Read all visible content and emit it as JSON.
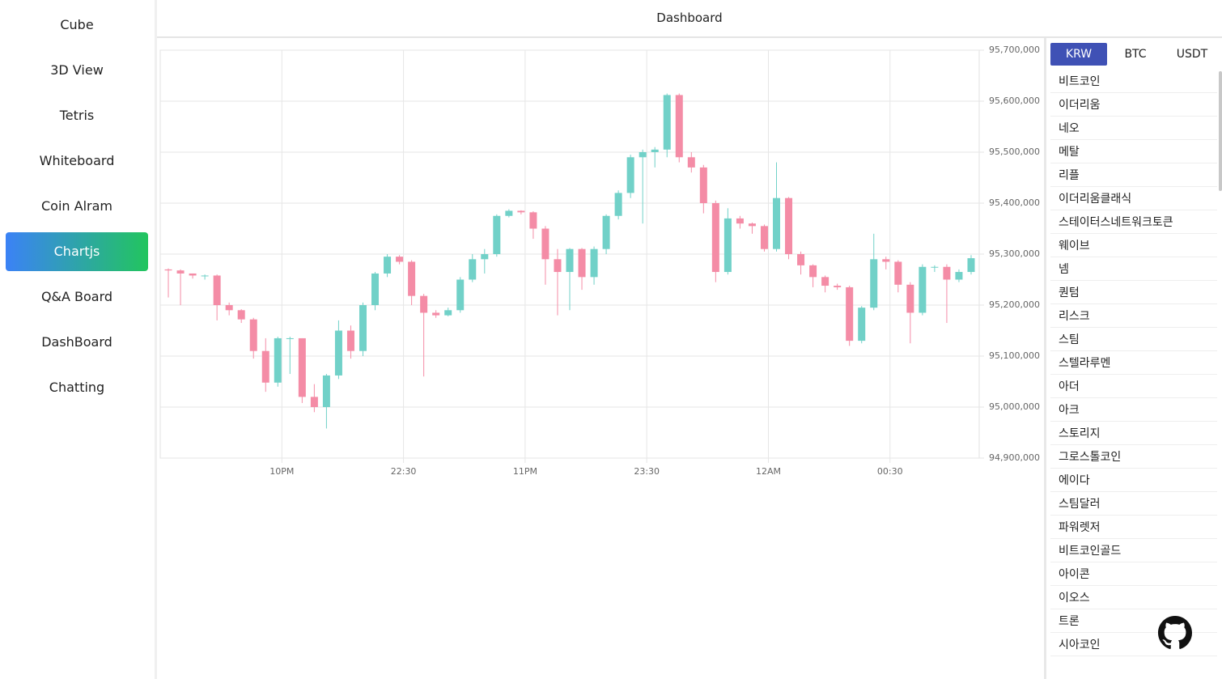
{
  "sidebar": {
    "items": [
      "Cube",
      "3D View",
      "Tetris",
      "Whiteboard",
      "Coin Alram",
      "Chartjs",
      "Q&A Board",
      "DashBoard",
      "Chatting"
    ]
  },
  "header": {
    "title": "Dashboard"
  },
  "chart_data": {
    "type": "candlestick",
    "x": [
      "21:32",
      "21:35",
      "21:38",
      "21:41",
      "21:44",
      "21:47",
      "21:50",
      "21:53",
      "21:56",
      "21:59",
      "22:02",
      "22:05",
      "22:08",
      "22:11",
      "22:14",
      "22:17",
      "22:20",
      "22:23",
      "22:26",
      "22:29",
      "22:32",
      "22:35",
      "22:38",
      "22:41",
      "22:44",
      "22:47",
      "22:50",
      "22:53",
      "22:56",
      "22:59",
      "23:02",
      "23:05",
      "23:08",
      "23:11",
      "23:14",
      "23:17",
      "23:20",
      "23:23",
      "23:26",
      "23:29",
      "23:32",
      "23:35",
      "23:38",
      "23:41",
      "23:44",
      "23:47",
      "23:50",
      "23:53",
      "23:56",
      "23:59",
      "00:02",
      "00:05",
      "00:08",
      "00:11",
      "00:14",
      "00:17",
      "00:20",
      "00:23",
      "00:26",
      "00:29",
      "00:32",
      "00:35",
      "00:38",
      "00:41",
      "00:44",
      "00:47",
      "00:50"
    ],
    "open": [
      95270000,
      95268000,
      95262000,
      95258000,
      95258000,
      95200000,
      95190000,
      95172000,
      95110000,
      95048000,
      95135000,
      95135000,
      95020000,
      95000000,
      95062000,
      95150000,
      95110000,
      95200000,
      95262000,
      95295000,
      95285000,
      95218000,
      95185000,
      95180000,
      95190000,
      95250000,
      95290000,
      95300000,
      95375000,
      95385000,
      95382000,
      95350000,
      95290000,
      95265000,
      95310000,
      95255000,
      95310000,
      95375000,
      95420000,
      95490000,
      95500000,
      95505000,
      95612000,
      95490000,
      95470000,
      95400000,
      95265000,
      95370000,
      95360000,
      95355000,
      95310000,
      95410000,
      95300000,
      95278000,
      95255000,
      95238000,
      95235000,
      95130000,
      95195000,
      95290000,
      95285000,
      95240000,
      95185000,
      95275000,
      95275000,
      95250000,
      95265000
    ],
    "high": [
      95272000,
      95270000,
      95262000,
      95260000,
      95260000,
      95205000,
      95192000,
      95175000,
      95135000,
      95138000,
      95138000,
      95135000,
      95045000,
      95065000,
      95170000,
      95160000,
      95205000,
      95265000,
      95300000,
      95298000,
      95288000,
      95222000,
      95190000,
      95195000,
      95255000,
      95300000,
      95310000,
      95378000,
      95388000,
      95386000,
      95384000,
      95355000,
      95310000,
      95312000,
      95312000,
      95315000,
      95378000,
      95425000,
      95495000,
      95505000,
      95510000,
      95615000,
      95615000,
      95500000,
      95475000,
      95405000,
      95390000,
      95375000,
      95362000,
      95358000,
      95480000,
      95412000,
      95305000,
      95280000,
      95258000,
      95242000,
      95238000,
      95198000,
      95340000,
      95295000,
      95288000,
      95245000,
      95280000,
      95278000,
      95280000,
      95270000,
      95298000
    ],
    "low": [
      95215000,
      95200000,
      95252000,
      95250000,
      95170000,
      95180000,
      95165000,
      95095000,
      95030000,
      95040000,
      95065000,
      95008000,
      94990000,
      94958000,
      95055000,
      95095000,
      95100000,
      95190000,
      95255000,
      95280000,
      95200000,
      95060000,
      95175000,
      95178000,
      95185000,
      95245000,
      95262000,
      95295000,
      95372000,
      95378000,
      95330000,
      95240000,
      95180000,
      95190000,
      95230000,
      95240000,
      95300000,
      95368000,
      95410000,
      95360000,
      95470000,
      95490000,
      95480000,
      95460000,
      95380000,
      95245000,
      95260000,
      95350000,
      95340000,
      95305000,
      95305000,
      95290000,
      95260000,
      95235000,
      95225000,
      95230000,
      95120000,
      95125000,
      95190000,
      95270000,
      95225000,
      95125000,
      95180000,
      95265000,
      95165000,
      95245000,
      95260000
    ],
    "close": [
      95268000,
      95262000,
      95258000,
      95258000,
      95200000,
      95190000,
      95172000,
      95110000,
      95048000,
      95135000,
      95135000,
      95020000,
      95000000,
      95062000,
      95150000,
      95110000,
      95200000,
      95262000,
      95295000,
      95285000,
      95218000,
      95185000,
      95180000,
      95190000,
      95250000,
      95290000,
      95300000,
      95375000,
      95385000,
      95382000,
      95350000,
      95290000,
      95265000,
      95310000,
      95255000,
      95310000,
      95375000,
      95420000,
      95490000,
      95500000,
      95505000,
      95612000,
      95490000,
      95470000,
      95400000,
      95265000,
      95370000,
      95360000,
      95355000,
      95310000,
      95410000,
      95300000,
      95278000,
      95255000,
      95238000,
      95235000,
      95130000,
      95195000,
      95290000,
      95285000,
      95240000,
      95185000,
      95275000,
      95275000,
      95250000,
      95265000,
      95292000
    ],
    "up_color": "#71d1c8",
    "down_color": "#f48ca6",
    "xlim": [
      "21:30",
      "00:52"
    ],
    "xticks": [
      {
        "value": "22:00",
        "label": "10PM"
      },
      "22:30",
      {
        "value": "23:00",
        "label": "11PM"
      },
      "23:30",
      {
        "value": "00:00",
        "label": "12AM"
      },
      "00:30"
    ],
    "ylim": [
      94900000,
      95700000
    ],
    "yticks": [
      {
        "value": 94900000,
        "label": "94,900,000"
      },
      {
        "value": 95000000,
        "label": "95,000,000"
      },
      {
        "value": 95100000,
        "label": "95,100,000"
      },
      {
        "value": 95200000,
        "label": "95,200,000"
      },
      {
        "value": 95300000,
        "label": "95,300,000"
      },
      {
        "value": 95400000,
        "label": "95,400,000"
      },
      {
        "value": 95500000,
        "label": "95,500,000"
      },
      {
        "value": 95600000,
        "label": "95,600,000"
      },
      {
        "value": 95700000,
        "label": "95,700,000"
      }
    ],
    "grid": true
  },
  "market": {
    "tabs": [
      "KRW",
      "BTC",
      "USDT"
    ],
    "coins": [
      "비트코인",
      "이더리움",
      "네오",
      "메탈",
      "리플",
      "이더리움클래식",
      "스테이터스네트워크토큰",
      "웨이브",
      "넴",
      "퀀텀",
      "리스크",
      "스팀",
      "스텔라루멘",
      "아더",
      "아크",
      "스토리지",
      "그로스톨코인",
      "에이다",
      "스팀달러",
      "파워렛저",
      "비트코인골드",
      "아이콘",
      "이오스",
      "트론",
      "시아코인"
    ]
  }
}
